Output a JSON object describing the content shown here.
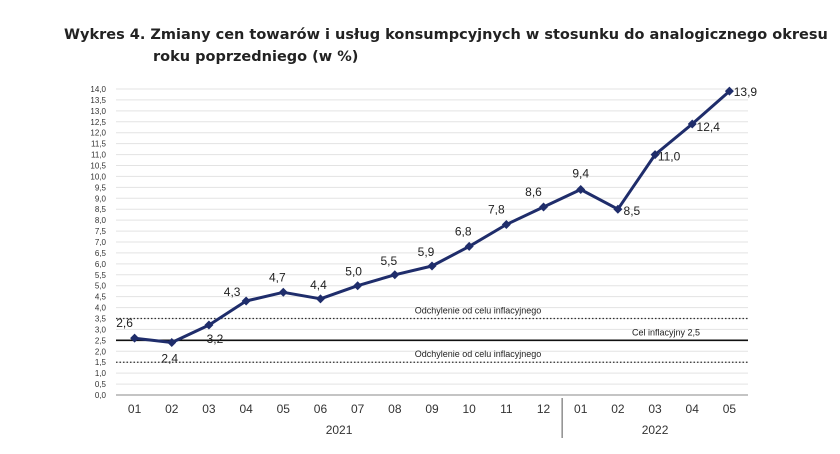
{
  "title": {
    "line1": "Wykres 4. Zmiany cen towarów i usług konsumpcyjnych w stosunku do analogicznego okresu",
    "line2": "roku poprzedniego (w %)"
  },
  "chart_data": {
    "type": "line",
    "title": "Wykres 4. Zmiany cen towarów i usług konsumpcyjnych w stosunku do analogicznego okresu roku poprzedniego (w %)",
    "categories": [
      "01",
      "02",
      "03",
      "04",
      "05",
      "06",
      "07",
      "08",
      "09",
      "10",
      "11",
      "12",
      "01",
      "02",
      "03",
      "04",
      "05"
    ],
    "year_groups": [
      {
        "label": "2021",
        "start_index": 0,
        "end_index": 11
      },
      {
        "label": "2022",
        "start_index": 12,
        "end_index": 16
      }
    ],
    "series": [
      {
        "values": [
          2.6,
          2.4,
          3.2,
          4.3,
          4.7,
          4.4,
          5.0,
          5.5,
          5.9,
          6.8,
          7.8,
          8.6,
          9.4,
          8.5,
          11.0,
          12.4,
          13.9
        ],
        "color": "#1f2d6b"
      }
    ],
    "data_labels": [
      "2,6",
      "2,4",
      "3,2",
      "4,3",
      "4,7",
      "4,4",
      "5,0",
      "5,5",
      "5,9",
      "6,8",
      "7,8",
      "8,6",
      "9,4",
      "8,5",
      "11,0",
      "12,4",
      "13,9"
    ],
    "ylim": [
      0,
      14
    ],
    "y_ticks": [
      "0,0",
      "0,5",
      "1,0",
      "1,5",
      "2,0",
      "2,5",
      "3,0",
      "3,5",
      "4,0",
      "4,5",
      "5,0",
      "5,5",
      "6,0",
      "6,5",
      "7,0",
      "7,5",
      "8,0",
      "8,5",
      "9,0",
      "9,5",
      "10,0",
      "10,5",
      "11,0",
      "11,5",
      "12,0",
      "12,5",
      "13,0",
      "13,5",
      "14,0"
    ],
    "reference_lines": [
      {
        "value": 3.5,
        "label": "Odchylenie od celu inflacyjnego",
        "style": "dotted"
      },
      {
        "value": 2.5,
        "label": "Cel inflacyjny 2,5",
        "style": "solid"
      },
      {
        "value": 1.5,
        "label": "Odchylenie od celu inflacyjnego",
        "style": "dotted"
      }
    ],
    "grid": true,
    "xlabel": "",
    "ylabel": ""
  }
}
